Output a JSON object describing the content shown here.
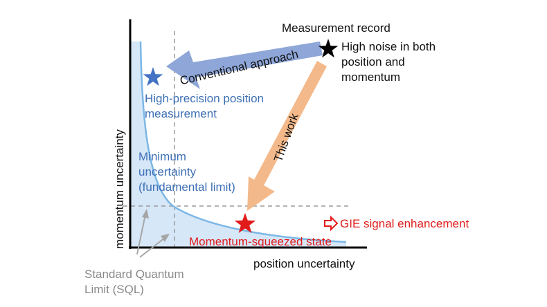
{
  "axes": {
    "x_label": "position uncertainty",
    "y_label": "momentum uncertainty"
  },
  "labels": {
    "measurement_record": "Measurement record",
    "high_noise": [
      "High noise in both",
      "position and",
      "momentum"
    ],
    "conventional": "Conventional approach",
    "this_work": "This work",
    "high_precision": [
      "High-precision position",
      "measurement"
    ],
    "minimum": [
      "Minimum",
      "uncertainty",
      "(fundamental limit)"
    ],
    "sql": [
      "Standard Quantum",
      "Limit (SQL)"
    ],
    "squeezed": "Momentum-squeezed state",
    "gie": "GIE signal enhancement"
  },
  "colors": {
    "blue_arrow": "#8ea6d8",
    "orange_arrow": "#f4b98a",
    "curve": "#7bb7e6",
    "fill": "#d6e7f8",
    "blue_text": "#3d6fb5",
    "red": "#e11b1b",
    "gray": "#8a8a8a"
  }
}
